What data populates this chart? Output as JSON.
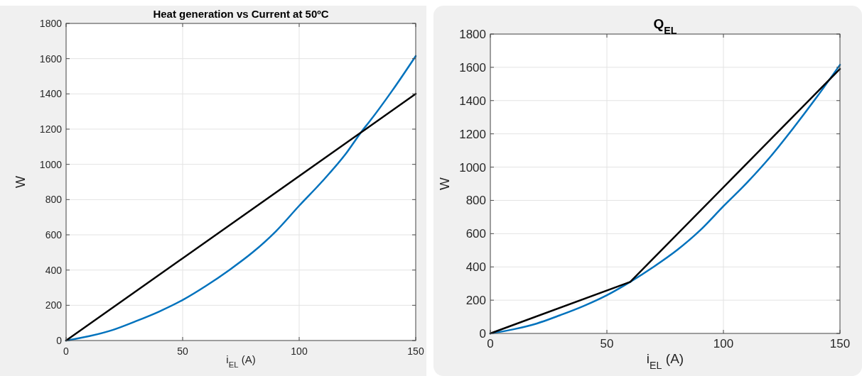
{
  "chart_data": [
    {
      "type": "line",
      "title": "Heat generation vs Current at 50ºC",
      "xlabel": "i$_{EL}$ (A)",
      "ylabel": "W",
      "xlim": [
        0,
        150
      ],
      "xticks": [
        0,
        50,
        100,
        150
      ],
      "ylim": [
        0,
        1800
      ],
      "yticks": [
        0,
        200,
        400,
        600,
        800,
        1000,
        1200,
        1400,
        1600,
        1800
      ],
      "grid": true,
      "series": [
        {
          "color": "#0072bd",
          "x": [
            0,
            10,
            20,
            30,
            40,
            50,
            60,
            70,
            80,
            90,
            100,
            110,
            120,
            127,
            130,
            140,
            150
          ],
          "values": [
            0,
            25,
            60,
            110,
            165,
            230,
            310,
            400,
            500,
            620,
            765,
            905,
            1060,
            1190,
            1240,
            1420,
            1615
          ]
        },
        {
          "color": "#000000",
          "x": [
            0,
            150
          ],
          "values": [
            0,
            1400
          ]
        }
      ]
    },
    {
      "type": "line",
      "title": "Q$_{EL}$",
      "xlabel": "i$_{EL}$ (A)",
      "ylabel": "W",
      "xlim": [
        0,
        150
      ],
      "xticks": [
        0,
        50,
        100,
        150
      ],
      "ylim": [
        0,
        1800
      ],
      "yticks": [
        0,
        200,
        400,
        600,
        800,
        1000,
        1200,
        1400,
        1600,
        1800
      ],
      "grid": true,
      "series": [
        {
          "color": "#0072bd",
          "x": [
            0,
            10,
            20,
            30,
            40,
            50,
            60,
            70,
            80,
            90,
            100,
            110,
            120,
            130,
            140,
            150
          ],
          "values": [
            0,
            25,
            60,
            110,
            165,
            230,
            310,
            400,
            500,
            620,
            765,
            905,
            1060,
            1235,
            1420,
            1615
          ]
        },
        {
          "color": "#000000",
          "x": [
            0,
            60,
            150
          ],
          "values": [
            0,
            310,
            1590
          ]
        }
      ]
    }
  ]
}
